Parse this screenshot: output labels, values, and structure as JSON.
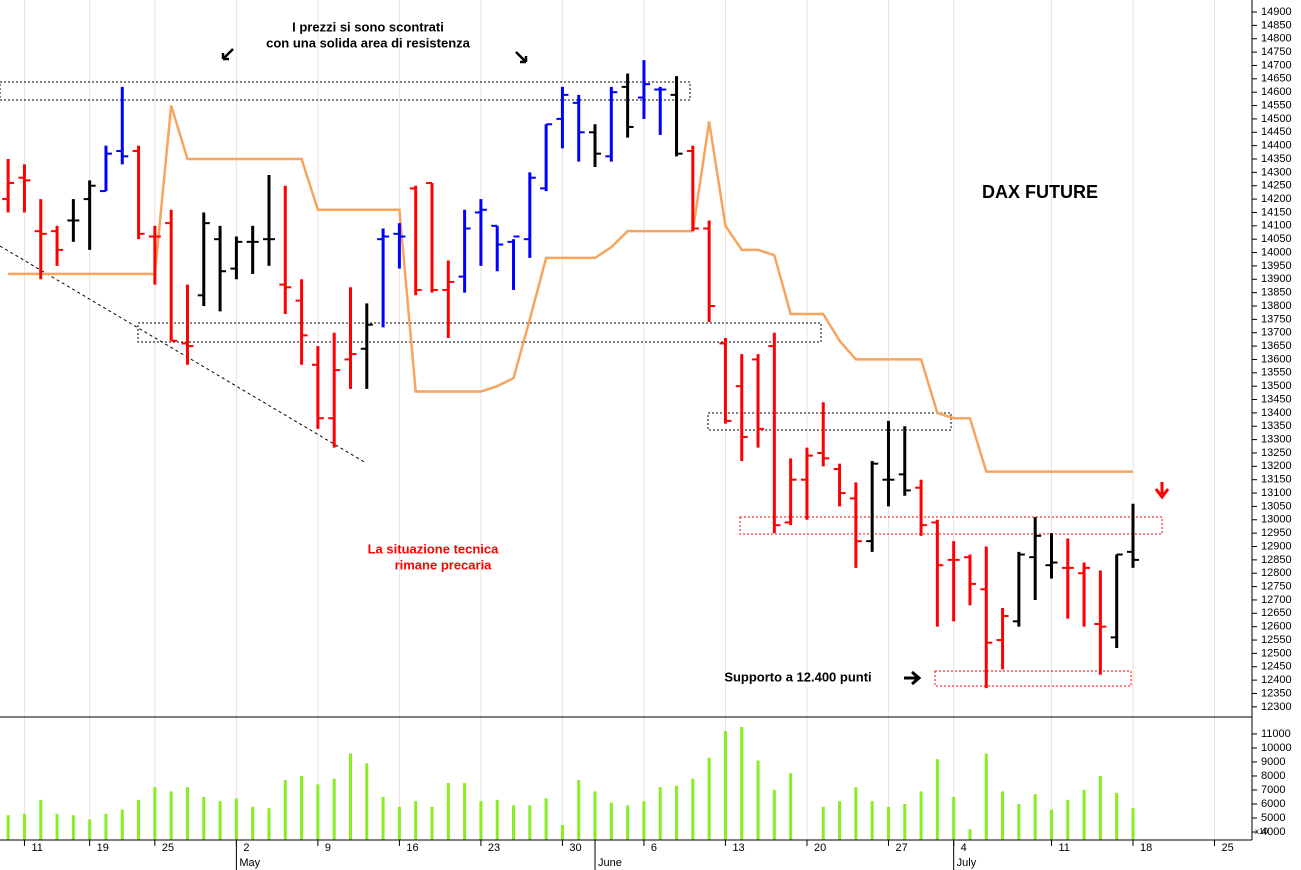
{
  "chart_data": [
    {
      "type": "ohlc",
      "title": "DAX FUTURE",
      "annotations": [
        "I prezzi si sono scontrati",
        "con una solida area di resistenza",
        "La situazione tecnica",
        "rimane precaria",
        "Supporto a 12.400 punti"
      ],
      "x": [
        0,
        1,
        2,
        3,
        4,
        5,
        6,
        7,
        8,
        9,
        10,
        11,
        12,
        13,
        14,
        15,
        16,
        17,
        18,
        19,
        20,
        21,
        22,
        23,
        24,
        25,
        26,
        27,
        28,
        29,
        30,
        31,
        32,
        33,
        34,
        35,
        36,
        37,
        38,
        39,
        40,
        41,
        42,
        43,
        44,
        45,
        46,
        47,
        48,
        49,
        50,
        51,
        52,
        53,
        54,
        55,
        56,
        57,
        58,
        59,
        60,
        61,
        62,
        63,
        64,
        65,
        66,
        67,
        68,
        69
      ],
      "open": [
        14200,
        14280,
        14080,
        14080,
        14120,
        14200,
        14230,
        14380,
        14380,
        14060,
        14110,
        13660,
        13840,
        14050,
        13940,
        14040,
        14050,
        13880,
        13820,
        13580,
        13380,
        13600,
        13640,
        14050,
        14070,
        14240,
        14260,
        13860,
        13910,
        14150,
        14100,
        14040,
        14050,
        14240,
        14500,
        14560,
        14450,
        14360,
        14620,
        14580,
        14610,
        14590,
        14380,
        14090,
        13660,
        13500,
        13600,
        13650,
        12990,
        13150,
        13250,
        13190,
        13080,
        12920,
        13150,
        13170,
        13120,
        12990,
        12850,
        12860,
        12740,
        12550,
        12620,
        12860,
        12830,
        12820,
        12800,
        12610,
        12560,
        12880
      ],
      "high": [
        14350,
        14330,
        14200,
        14100,
        14200,
        14270,
        14400,
        14620,
        14400,
        14100,
        14160,
        13880,
        14150,
        14100,
        14060,
        14100,
        14290,
        14250,
        13900,
        13650,
        13700,
        13870,
        13810,
        14090,
        14110,
        14250,
        14260,
        13970,
        14160,
        14200,
        14100,
        14050,
        14300,
        14480,
        14620,
        14590,
        14480,
        14620,
        14670,
        14720,
        14620,
        14660,
        14400,
        14120,
        13680,
        13620,
        13620,
        13700,
        13230,
        13270,
        13440,
        13210,
        13140,
        13220,
        13370,
        13350,
        13150,
        13000,
        12920,
        12870,
        12900,
        12670,
        12880,
        13010,
        12950,
        12930,
        12840,
        12810,
        12870,
        13060
      ],
      "low": [
        14150,
        14150,
        13900,
        13950,
        14040,
        14010,
        14230,
        14330,
        14050,
        13880,
        13670,
        13580,
        13800,
        13780,
        13900,
        13920,
        13950,
        13770,
        13580,
        13340,
        13270,
        13490,
        13490,
        13720,
        13940,
        13840,
        13850,
        13680,
        13850,
        13950,
        13930,
        13860,
        13980,
        14230,
        14390,
        14340,
        14320,
        14340,
        14430,
        14500,
        14440,
        14360,
        14080,
        13740,
        13360,
        13220,
        13270,
        12950,
        12980,
        13000,
        13200,
        13050,
        12820,
        12880,
        13050,
        13090,
        12940,
        12600,
        12620,
        12680,
        12370,
        12440,
        12600,
        12700,
        12780,
        12630,
        12600,
        12420,
        12520,
        12820
      ],
      "close": [
        14260,
        14270,
        14070,
        14010,
        14120,
        14250,
        14370,
        14360,
        14070,
        14060,
        13670,
        13650,
        14110,
        13930,
        14040,
        14040,
        14050,
        13870,
        13690,
        13380,
        13560,
        13620,
        13730,
        14060,
        14060,
        13860,
        13860,
        13890,
        14090,
        14160,
        14030,
        14060,
        14280,
        14480,
        14590,
        14450,
        14370,
        14600,
        14470,
        14630,
        14610,
        14370,
        14090,
        13800,
        13370,
        13310,
        13340,
        12980,
        13150,
        13240,
        13230,
        13100,
        12920,
        13210,
        13150,
        13110,
        12980,
        12830,
        12850,
        12760,
        12540,
        12640,
        12870,
        12940,
        12840,
        12820,
        12820,
        12600,
        12870,
        12850
      ],
      "colors": [
        "#ff0000",
        "#ff0000",
        "#ff0000",
        "#ff0000",
        "#000000",
        "#000000",
        "#0000ff",
        "#0000ff",
        "#ff0000",
        "#ff0000",
        "#ff0000",
        "#ff0000",
        "#000000",
        "#000000",
        "#000000",
        "#000000",
        "#000000",
        "#ff0000",
        "#ff0000",
        "#ff0000",
        "#ff0000",
        "#ff0000",
        "#000000",
        "#0000ff",
        "#0000ff",
        "#ff0000",
        "#ff0000",
        "#ff0000",
        "#0000ff",
        "#0000ff",
        "#0000ff",
        "#0000ff",
        "#0000ff",
        "#0000ff",
        "#0000ff",
        "#0000ff",
        "#000000",
        "#0000ff",
        "#000000",
        "#0000ff",
        "#0000ff",
        "#000000",
        "#ff0000",
        "#ff0000",
        "#ff0000",
        "#ff0000",
        "#ff0000",
        "#ff0000",
        "#ff0000",
        "#ff0000",
        "#ff0000",
        "#ff0000",
        "#ff0000",
        "#000000",
        "#000000",
        "#000000",
        "#ff0000",
        "#ff0000",
        "#ff0000",
        "#ff0000",
        "#ff0000",
        "#ff0000",
        "#000000",
        "#000000",
        "#000000",
        "#ff0000",
        "#ff0000",
        "#ff0000",
        "#000000",
        "#000000"
      ],
      "line": {
        "color": "#f7a45e",
        "values": [
          13920,
          13920,
          13920,
          13920,
          13920,
          13920,
          13920,
          13920,
          13920,
          13920,
          14550,
          14350,
          14350,
          14350,
          14350,
          14350,
          14350,
          14350,
          14350,
          14160,
          14160,
          14160,
          14160,
          14160,
          14160,
          13480,
          13480,
          13480,
          13480,
          13480,
          13500,
          13530,
          13750,
          13980,
          13980,
          13980,
          13980,
          14020,
          14080,
          14080,
          14080,
          14080,
          14080,
          14490,
          14100,
          14010,
          14010,
          13990,
          13770,
          13770,
          13770,
          13670,
          13600,
          13600,
          13600,
          13600,
          13600,
          13400,
          13380,
          13380,
          13180,
          13180,
          13180,
          13180,
          13180,
          13180,
          13180,
          13180,
          13180,
          13180
        ]
      },
      "xlim": [
        -0.5,
        76.3
      ],
      "ylim": [
        12262,
        14945
      ],
      "yticks": [
        12300,
        12350,
        12400,
        12450,
        12500,
        12550,
        12600,
        12650,
        12700,
        12750,
        12800,
        12850,
        12900,
        12950,
        13000,
        13050,
        13100,
        13150,
        13200,
        13250,
        13300,
        13350,
        13400,
        13450,
        13500,
        13550,
        13600,
        13650,
        13700,
        13750,
        13800,
        13850,
        13900,
        13950,
        14000,
        14050,
        14100,
        14150,
        14200,
        14250,
        14300,
        14350,
        14400,
        14450,
        14500,
        14550,
        14600,
        14650,
        14700,
        14750,
        14800,
        14850,
        14900
      ],
      "xticks": [
        {
          "value": 1,
          "label": "11"
        },
        {
          "value": 5,
          "label": "19"
        },
        {
          "value": 9,
          "label": "25"
        },
        {
          "value": 14,
          "label": "2"
        },
        {
          "value": 19,
          "label": "9"
        },
        {
          "value": 24,
          "label": "16"
        },
        {
          "value": 29,
          "label": "23"
        },
        {
          "value": 34,
          "label": "30"
        },
        {
          "value": 39,
          "label": "6"
        },
        {
          "value": 44,
          "label": "13"
        },
        {
          "value": 49,
          "label": "20"
        },
        {
          "value": 54,
          "label": "27"
        },
        {
          "value": 58,
          "label": "4"
        },
        {
          "value": 64,
          "label": "11"
        },
        {
          "value": 69,
          "label": "18"
        },
        {
          "value": 74,
          "label": "25"
        }
      ],
      "month_ticks": [
        {
          "value": 14,
          "label": "May"
        },
        {
          "value": 36,
          "label": "June"
        },
        {
          "value": 58,
          "label": "July"
        }
      ],
      "grid": true
    },
    {
      "type": "bar",
      "color": "#88ee22",
      "unit_label": "x10",
      "x": [
        0,
        1,
        2,
        3,
        4,
        5,
        6,
        7,
        8,
        9,
        10,
        11,
        12,
        13,
        14,
        15,
        16,
        17,
        18,
        19,
        20,
        21,
        22,
        23,
        24,
        25,
        26,
        27,
        28,
        29,
        30,
        31,
        32,
        33,
        34,
        35,
        36,
        37,
        38,
        39,
        40,
        41,
        42,
        43,
        44,
        45,
        46,
        47,
        48,
        49,
        50,
        51,
        52,
        53,
        54,
        55,
        56,
        57,
        58,
        59,
        60,
        61,
        62,
        63,
        64,
        65,
        66,
        67,
        68,
        69
      ],
      "values": [
        5200,
        5300,
        6300,
        5300,
        5200,
        4900,
        5300,
        5600,
        6300,
        7200,
        6900,
        7200,
        6500,
        6200,
        6400,
        5800,
        5700,
        7700,
        8000,
        7400,
        7800,
        9600,
        8900,
        6500,
        5800,
        6200,
        5800,
        7500,
        7500,
        6200,
        6300,
        5900,
        5900,
        6400,
        4500,
        7700,
        6900,
        6100,
        5900,
        6200,
        7200,
        7300,
        7800,
        9300,
        11200,
        11500,
        9100,
        7000,
        8200,
        null,
        5800,
        6200,
        7200,
        6200,
        5800,
        6000,
        6900,
        9200,
        6500,
        4200,
        9600,
        6900,
        6000,
        6700,
        5600,
        6300,
        7000,
        8000,
        6800,
        5700
      ],
      "xlim": [
        -0.5,
        76.3
      ],
      "ylim": [
        3430,
        12210
      ],
      "yticks": [
        4000,
        5000,
        6000,
        7000,
        8000,
        9000,
        10000,
        11000
      ]
    }
  ]
}
